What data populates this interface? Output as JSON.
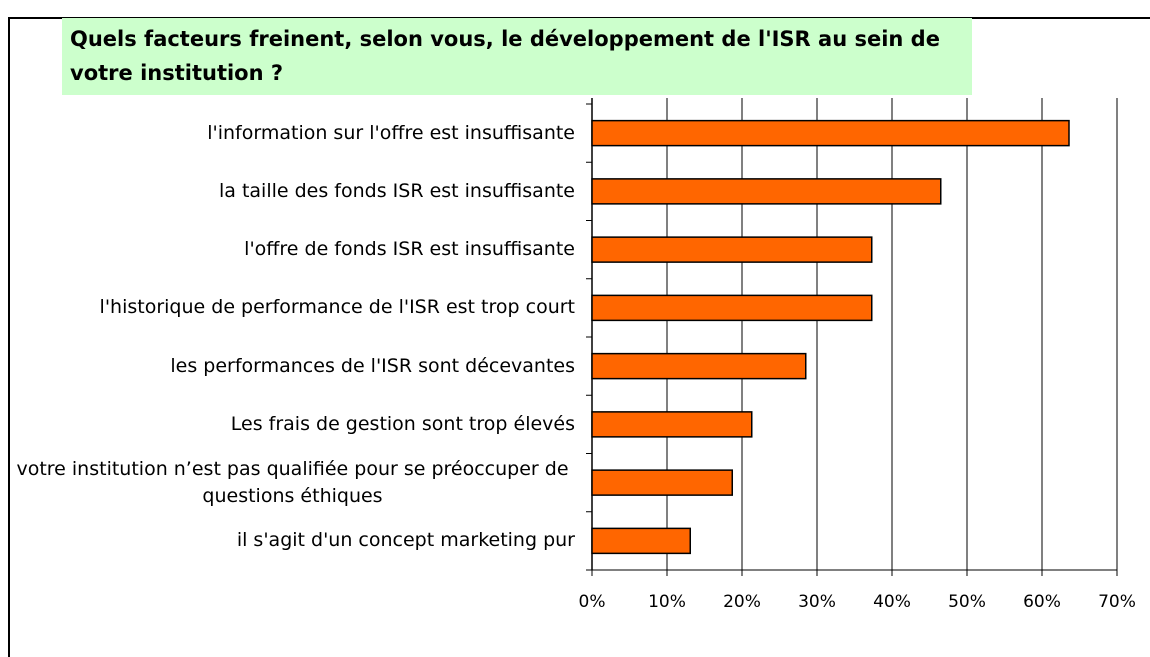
{
  "chart_data": {
    "type": "barh",
    "title": "Quels facteurs freinent, selon vous, le développement de l'ISR au sein de votre institution ?",
    "categories": [
      "l'information sur l'offre est insuffisante",
      "la taille des fonds ISR est insuffisante",
      "l'offre de fonds ISR est insuffisante",
      "l'historique de performance de l'ISR est trop court",
      "les performances de l'ISR sont décevantes",
      "Les frais de gestion sont trop élevés",
      "votre institution n’est pas qualifiée pour se préoccuper de questions éthiques",
      "il s'agit d'un concept marketing pur"
    ],
    "values": [
      63.6,
      46.5,
      37.3,
      37.3,
      28.5,
      21.3,
      18.7,
      13.1
    ],
    "color": "#ff6600",
    "xlim": [
      0,
      70
    ],
    "xticks": [
      {
        "value": 0,
        "label": "0%"
      },
      {
        "value": 10,
        "label": "10%"
      },
      {
        "value": 20,
        "label": "20%"
      },
      {
        "value": 30,
        "label": "30%"
      },
      {
        "value": 40,
        "label": "40%"
      },
      {
        "value": 50,
        "label": "50%"
      },
      {
        "value": 60,
        "label": "60%"
      },
      {
        "value": 70,
        "label": "70%"
      }
    ],
    "grid": true
  }
}
